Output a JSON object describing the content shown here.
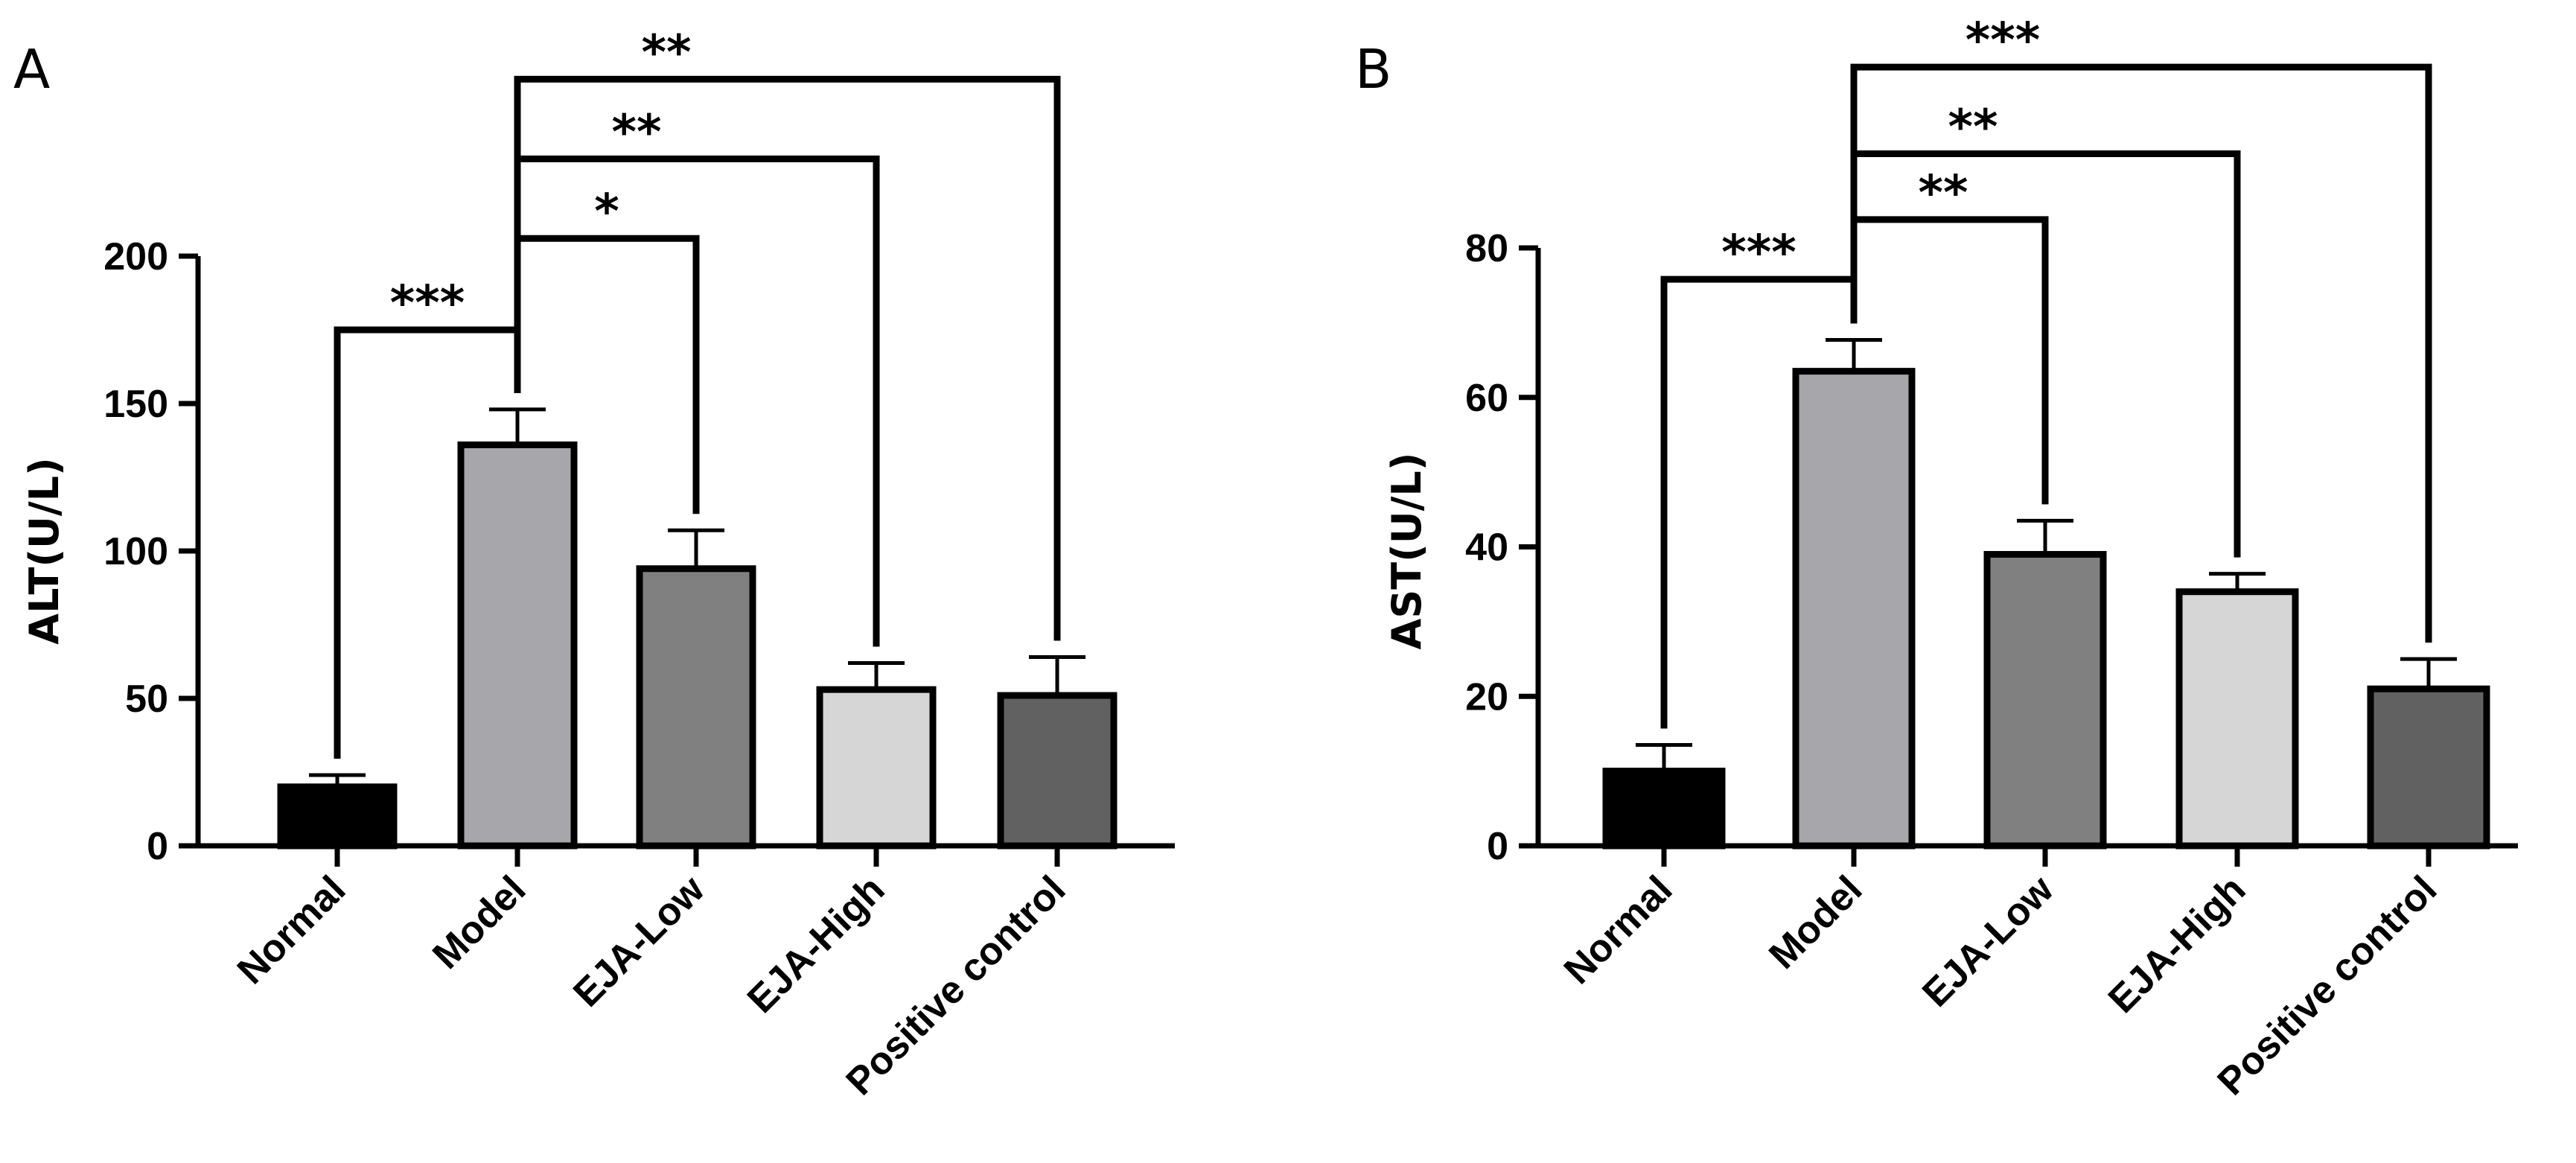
{
  "chart_data": [
    {
      "panel": "A",
      "type": "bar",
      "categories": [
        "Normal",
        "Model",
        "EJA-Low",
        "EJA-High",
        "Positive control"
      ],
      "values": [
        20,
        136,
        94,
        53,
        51
      ],
      "errors": [
        4,
        12,
        13,
        9,
        13
      ],
      "colors": [
        "#000000",
        "#a7a6ab",
        "#808080",
        "#d6d6d6",
        "#616161"
      ],
      "ylabel": "ALT(U/L)",
      "xlabel": "",
      "ylim": [
        0,
        200
      ],
      "yticks": [
        0,
        50,
        100,
        150,
        200
      ],
      "comparisons": [
        {
          "from": 0,
          "to": 1,
          "label": "***",
          "level": 175
        },
        {
          "from": 1,
          "to": 2,
          "label": "*",
          "level": 206
        },
        {
          "from": 1,
          "to": 3,
          "label": "**",
          "level": 233
        },
        {
          "from": 1,
          "to": 4,
          "label": "**",
          "level": 260
        }
      ]
    },
    {
      "panel": "B",
      "type": "bar",
      "categories": [
        "Normal",
        "Model",
        "EJA-Low",
        "EJA-High",
        "Positive control"
      ],
      "values": [
        10,
        63.5,
        39,
        34,
        21
      ],
      "errors": [
        3.5,
        4.2,
        4.5,
        2.4,
        4
      ],
      "colors": [
        "#000000",
        "#a7a6ab",
        "#808080",
        "#d6d6d6",
        "#616161"
      ],
      "ylabel": "AST(U/L)",
      "xlabel": "",
      "ylim": [
        0,
        80
      ],
      "yticks": [
        0,
        20,
        40,
        60,
        80
      ],
      "comparisons": [
        {
          "from": 0,
          "to": 1,
          "label": "***",
          "level": 75.8
        },
        {
          "from": 1,
          "to": 2,
          "label": "**",
          "level": 83.8
        },
        {
          "from": 1,
          "to": 3,
          "label": "**",
          "level": 92.6
        },
        {
          "from": 1,
          "to": 4,
          "label": "***",
          "level": 104.2
        }
      ]
    }
  ]
}
